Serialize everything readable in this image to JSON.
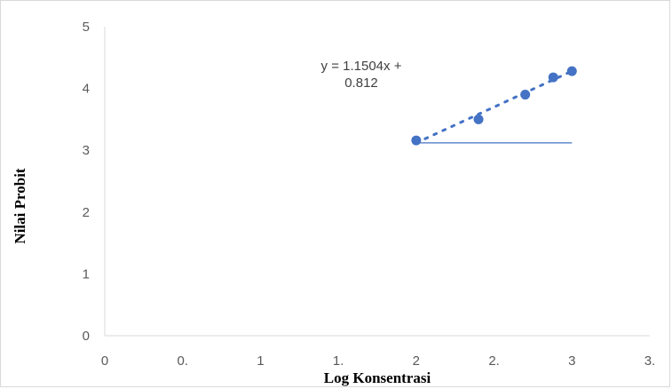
{
  "chart_data": {
    "type": "scatter",
    "title": "",
    "xlabel": "Log Konsentrasi",
    "ylabel": "Nilai Probit",
    "xlim": [
      0,
      3.5
    ],
    "ylim": [
      0,
      5
    ],
    "x_tick_labels": [
      "0",
      "0.",
      "1",
      "1.",
      "2",
      "2.",
      "3",
      "3."
    ],
    "x_tick_values": [
      0,
      0.5,
      1,
      1.5,
      2,
      2.5,
      3,
      3.5
    ],
    "y_tick_labels": [
      "0",
      "1",
      "2",
      "3",
      "4",
      "5"
    ],
    "y_tick_values": [
      0,
      1,
      2,
      3,
      4,
      5
    ],
    "grid": false,
    "series": [
      {
        "x": [
          2.0,
          2.4,
          2.7,
          2.88,
          3.0
        ],
        "y": [
          3.16,
          3.5,
          3.9,
          4.18,
          4.28
        ],
        "color": "#4472c4"
      }
    ],
    "trendline": {
      "style": "dotted",
      "color": "#4472c4",
      "equation_line1": "y = 1.1504x +",
      "equation_line2": "0.812",
      "x_range": [
        2.0,
        3.0
      ],
      "y_range": [
        3.12,
        4.28
      ]
    },
    "reference_line": {
      "x_range": [
        2.0,
        3.0
      ],
      "y": 3.12,
      "color": "#4472c4"
    }
  }
}
